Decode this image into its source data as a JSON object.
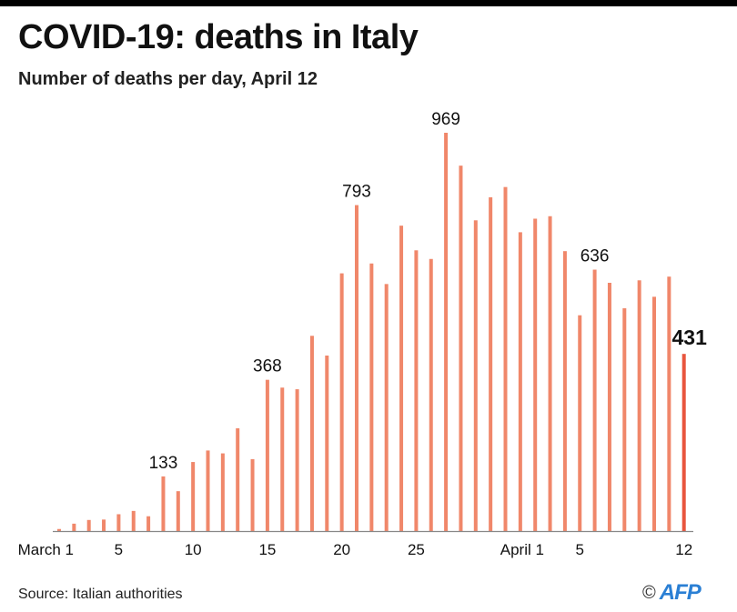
{
  "header": {
    "title": "COVID-19: deaths in Italy",
    "subtitle": "Number of deaths per day, April 12"
  },
  "footer": {
    "source": "Source: Italian authorities",
    "copyright_symbol": "©",
    "brand": "AFP"
  },
  "colors": {
    "bar": "#f0876a",
    "highlight_bar": "#e8553e",
    "axis": "#888888",
    "brand": "#2a7fd4"
  },
  "chart_data": {
    "type": "bar",
    "title": "COVID-19: deaths in Italy",
    "subtitle": "Number of deaths per day, April 12",
    "xlabel": "",
    "ylabel": "",
    "ylim": [
      0,
      1000
    ],
    "grid": false,
    "categories": [
      "Mar 1",
      "Mar 2",
      "Mar 3",
      "Mar 4",
      "Mar 5",
      "Mar 6",
      "Mar 7",
      "Mar 8",
      "Mar 9",
      "Mar 10",
      "Mar 11",
      "Mar 12",
      "Mar 13",
      "Mar 14",
      "Mar 15",
      "Mar 16",
      "Mar 17",
      "Mar 18",
      "Mar 19",
      "Mar 20",
      "Mar 21",
      "Mar 22",
      "Mar 23",
      "Mar 24",
      "Mar 25",
      "Mar 26",
      "Mar 27",
      "Mar 28",
      "Mar 29",
      "Mar 30",
      "Mar 31",
      "Apr 1",
      "Apr 2",
      "Apr 3",
      "Apr 4",
      "Apr 5",
      "Apr 6",
      "Apr 7",
      "Apr 8",
      "Apr 9",
      "Apr 10",
      "Apr 11",
      "Apr 12"
    ],
    "values": [
      5,
      18,
      27,
      28,
      41,
      49,
      36,
      133,
      97,
      168,
      196,
      189,
      250,
      175,
      368,
      349,
      345,
      475,
      427,
      627,
      793,
      651,
      601,
      743,
      683,
      662,
      969,
      889,
      756,
      812,
      837,
      727,
      760,
      766,
      681,
      525,
      636,
      604,
      542,
      610,
      570,
      619,
      431
    ],
    "highlight_index": 42,
    "data_labels": [
      {
        "index": 7,
        "text": "133"
      },
      {
        "index": 14,
        "text": "368"
      },
      {
        "index": 20,
        "text": "793"
      },
      {
        "index": 26,
        "text": "969"
      },
      {
        "index": 36,
        "text": "636"
      },
      {
        "index": 42,
        "text": "431"
      }
    ],
    "x_ticks": [
      {
        "index": 0,
        "label": "March 1"
      },
      {
        "index": 4,
        "label": "5"
      },
      {
        "index": 9,
        "label": "10"
      },
      {
        "index": 14,
        "label": "15"
      },
      {
        "index": 19,
        "label": "20"
      },
      {
        "index": 24,
        "label": "25"
      },
      {
        "index": 31,
        "label": "April 1"
      },
      {
        "index": 35,
        "label": "5"
      },
      {
        "index": 42,
        "label": "12"
      }
    ]
  }
}
